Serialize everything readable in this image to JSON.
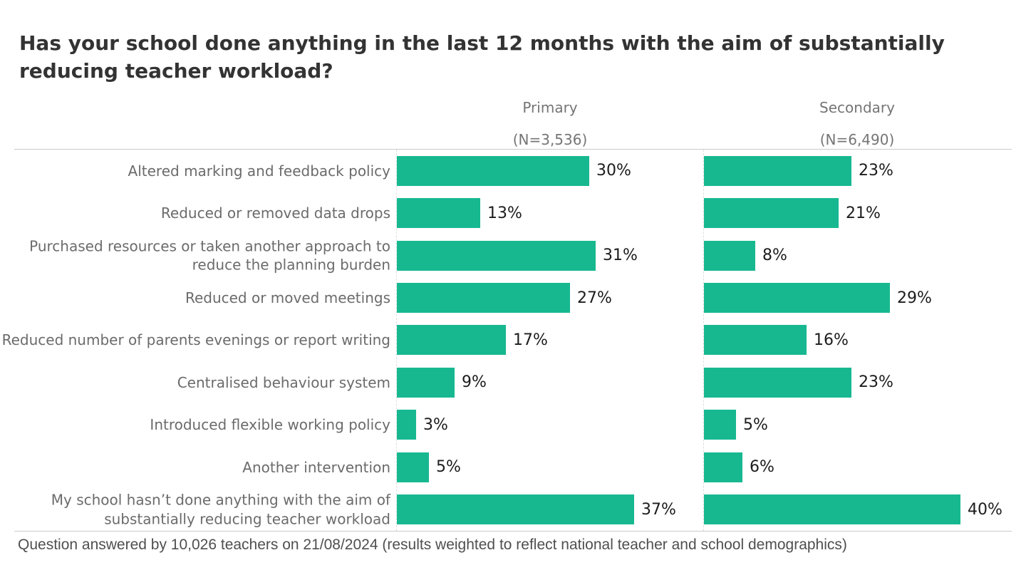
{
  "title": "Has your school done anything in the last 12 months with the aim of substantially reducing teacher workload?",
  "columns": [
    {
      "label": "Primary",
      "n_label": "(N=3,536)"
    },
    {
      "label": "Secondary",
      "n_label": "(N=6,490)"
    }
  ],
  "footer": "Question answered by 10,026 teachers on 21/08/2024 (results weighted to reflect national teacher and school demographics)",
  "colors": {
    "bar": "#17b890",
    "title": "#333333",
    "category_label": "#6b6b6b",
    "column_header": "#757575",
    "value_label": "#1c1c1c",
    "divider": "#cbcbcb"
  },
  "chart_data": {
    "type": "bar",
    "orientation": "horizontal",
    "title": "Has your school done anything in the last 12 months with the aim of substantially reducing teacher workload?",
    "value_suffix": "%",
    "categories": [
      "Altered marking and feedback policy",
      "Reduced or removed data drops",
      "Purchased resources or taken another approach to reduce the planning burden",
      "Reduced or moved meetings",
      "Reduced number of parents evenings or report writing",
      "Centralised behaviour system",
      "Introduced flexible working policy",
      "Another intervention",
      "My school hasn’t done anything with the aim of substantially reducing teacher workload"
    ],
    "series": [
      {
        "name": "Primary (N=3,536)",
        "values": [
          30,
          13,
          31,
          27,
          17,
          9,
          3,
          5,
          37
        ]
      },
      {
        "name": "Secondary (N=6,490)",
        "values": [
          23,
          21,
          8,
          29,
          16,
          23,
          5,
          6,
          40
        ]
      }
    ],
    "xlim": [
      0,
      48
    ],
    "grid": false,
    "legend_position": "column-headers",
    "data_labels": true
  }
}
